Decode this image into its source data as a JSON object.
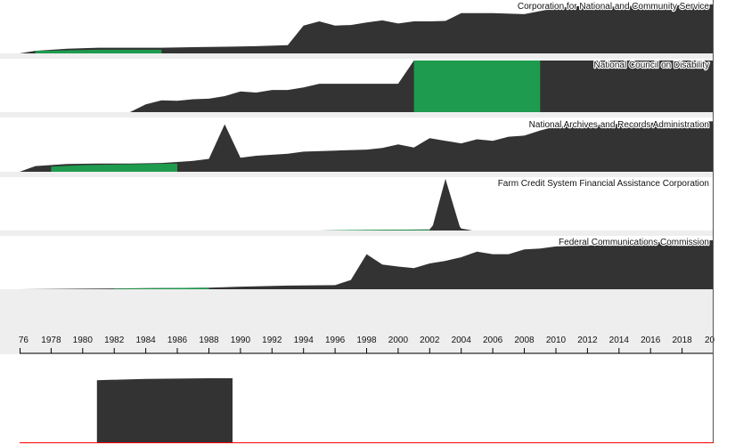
{
  "colors": {
    "area": "#333333",
    "highlight": "#1e9b4e",
    "panel_background": "#eeeeee",
    "baseline": "#ff0000"
  },
  "chart_data": {
    "type": "area",
    "x_axis": {
      "range": [
        1976,
        2020
      ],
      "tick_labels": [
        "76",
        "1978",
        "1980",
        "1982",
        "1984",
        "1986",
        "1988",
        "1990",
        "1992",
        "1994",
        "1996",
        "1998",
        "2000",
        "2002",
        "2004",
        "2006",
        "2008",
        "2010",
        "2012",
        "2014",
        "2016",
        "2018",
        "20"
      ]
    },
    "panels": [
      {
        "title": "Corporation for National and Community Service",
        "ymax": 100,
        "values": [
          [
            1976,
            0
          ],
          [
            1977,
            5
          ],
          [
            1979,
            9
          ],
          [
            1981,
            11
          ],
          [
            1983,
            11
          ],
          [
            1985,
            11
          ],
          [
            1987,
            12
          ],
          [
            1989,
            13
          ],
          [
            1991,
            14
          ],
          [
            1993,
            16
          ],
          [
            1994,
            54
          ],
          [
            1995,
            62
          ],
          [
            1996,
            54
          ],
          [
            1997,
            55
          ],
          [
            1998,
            60
          ],
          [
            1999,
            64
          ],
          [
            2000,
            58
          ],
          [
            2001,
            62
          ],
          [
            2002,
            62
          ],
          [
            2003,
            63
          ],
          [
            2004,
            78
          ],
          [
            2006,
            78
          ],
          [
            2008,
            76
          ],
          [
            2010,
            88
          ],
          [
            2012,
            93
          ],
          [
            2014,
            90
          ],
          [
            2016,
            95
          ],
          [
            2018,
            93
          ],
          [
            2020,
            95
          ]
        ],
        "highlight": {
          "from": 1977,
          "to": 1985,
          "values": [
            [
              1977,
              5
            ],
            [
              1979,
              6
            ],
            [
              1981,
              7
            ],
            [
              1983,
              7
            ],
            [
              1985,
              7
            ]
          ]
        }
      },
      {
        "title": "National Council on Disability",
        "ymax": 100,
        "values": [
          [
            1983,
            0
          ],
          [
            1984,
            15
          ],
          [
            1985,
            23
          ],
          [
            1986,
            22
          ],
          [
            1987,
            25
          ],
          [
            1988,
            26
          ],
          [
            1989,
            31
          ],
          [
            1990,
            40
          ],
          [
            1991,
            38
          ],
          [
            1992,
            43
          ],
          [
            1993,
            43
          ],
          [
            1994,
            48
          ],
          [
            1995,
            55
          ],
          [
            1996,
            55
          ],
          [
            1998,
            55
          ],
          [
            1999,
            55
          ],
          [
            2000,
            55
          ],
          [
            2001,
            100
          ],
          [
            2009,
            100
          ],
          [
            2020,
            100
          ]
        ],
        "highlight": {
          "from": 2001,
          "to": 2009,
          "values": [
            [
              2001,
              100
            ],
            [
              2009,
              100
            ]
          ]
        }
      },
      {
        "title": "National Archives and Records Administration",
        "ymax": 100,
        "values": [
          [
            1976,
            0
          ],
          [
            1977,
            11
          ],
          [
            1979,
            15
          ],
          [
            1981,
            16
          ],
          [
            1983,
            16
          ],
          [
            1985,
            17
          ],
          [
            1986,
            19
          ],
          [
            1987,
            21
          ],
          [
            1988,
            25
          ],
          [
            1989,
            92
          ],
          [
            1990,
            27
          ],
          [
            1991,
            31
          ],
          [
            1992,
            33
          ],
          [
            1993,
            35
          ],
          [
            1994,
            39
          ],
          [
            1996,
            41
          ],
          [
            1998,
            43
          ],
          [
            1999,
            46
          ],
          [
            2000,
            53
          ],
          [
            2001,
            47
          ],
          [
            2002,
            65
          ],
          [
            2003,
            60
          ],
          [
            2004,
            55
          ],
          [
            2005,
            63
          ],
          [
            2006,
            60
          ],
          [
            2007,
            68
          ],
          [
            2008,
            70
          ],
          [
            2009,
            80
          ],
          [
            2010,
            88
          ],
          [
            2012,
            90
          ],
          [
            2014,
            93
          ],
          [
            2016,
            95
          ],
          [
            2018,
            96
          ],
          [
            2020,
            98
          ]
        ],
        "highlight": {
          "from": 1978,
          "to": 1986,
          "values": [
            [
              1978,
              10
            ],
            [
              1980,
              13
            ],
            [
              1982,
              14
            ],
            [
              1984,
              15
            ],
            [
              1986,
              16
            ]
          ]
        }
      },
      {
        "title": "Farm Credit System Financial Assistance Corporation",
        "ymax": 100,
        "values": [
          [
            1995,
            0
          ],
          [
            1998,
            1
          ],
          [
            2002,
            2
          ],
          [
            2002.2,
            10
          ],
          [
            2003,
            100
          ],
          [
            2003.9,
            8
          ],
          [
            2004,
            4
          ],
          [
            2004.7,
            0
          ]
        ],
        "highlight": {
          "from": 1995,
          "to": 2002,
          "values": [
            [
              1995,
              0
            ],
            [
              1997,
              1
            ],
            [
              2000,
              1.5
            ],
            [
              2002,
              1.5
            ]
          ]
        }
      },
      {
        "title": "Federal Communications Commission",
        "ymax": 100,
        "values": [
          [
            1976,
            0
          ],
          [
            1980,
            1
          ],
          [
            1984,
            2
          ],
          [
            1988,
            3
          ],
          [
            1990,
            5
          ],
          [
            1993,
            7
          ],
          [
            1996,
            8
          ],
          [
            1997,
            18
          ],
          [
            1998,
            68
          ],
          [
            1999,
            48
          ],
          [
            2000,
            44
          ],
          [
            2001,
            41
          ],
          [
            2002,
            50
          ],
          [
            2003,
            55
          ],
          [
            2004,
            62
          ],
          [
            2005,
            73
          ],
          [
            2006,
            68
          ],
          [
            2007,
            68
          ],
          [
            2008,
            77
          ],
          [
            2009,
            79
          ],
          [
            2010,
            83
          ],
          [
            2012,
            85
          ],
          [
            2014,
            85
          ],
          [
            2016,
            95
          ],
          [
            2017,
            88
          ],
          [
            2018,
            92
          ],
          [
            2020,
            95
          ]
        ],
        "highlight": {
          "from": 1982,
          "to": 1988,
          "values": [
            [
              1982,
              1
            ],
            [
              1985,
              2
            ],
            [
              1988,
              3
            ]
          ]
        }
      }
    ],
    "context": {
      "ymax": 100,
      "values": [
        [
          1980.9,
          0
        ],
        [
          1980.9,
          97
        ],
        [
          1984,
          99
        ],
        [
          1988,
          100
        ],
        [
          1989.5,
          100
        ],
        [
          1989.5,
          0
        ]
      ]
    }
  }
}
